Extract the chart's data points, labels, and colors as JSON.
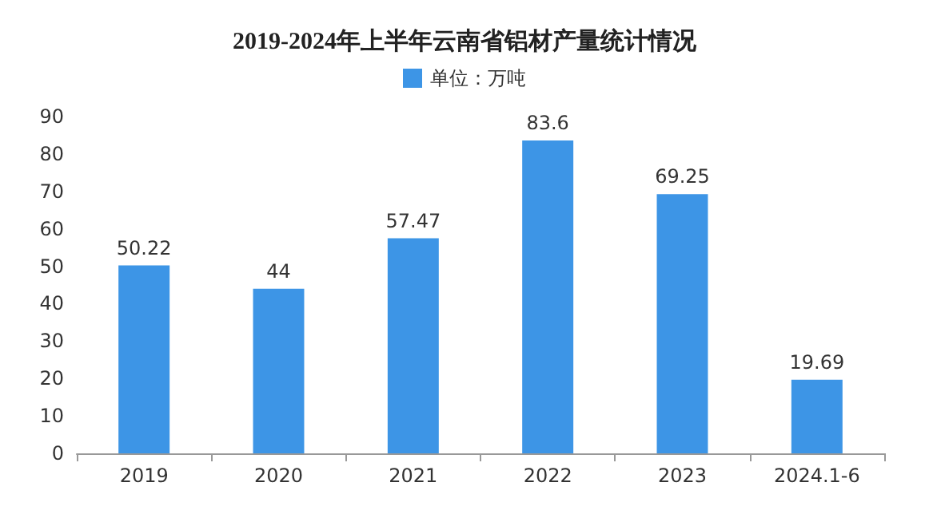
{
  "chart_data": {
    "type": "bar",
    "title": "2019-2024年上半年云南省铝材产量统计情况",
    "categories": [
      "2019",
      "2020",
      "2021",
      "2022",
      "2023",
      "2024.1-6"
    ],
    "series": [
      {
        "name": "单位：万吨",
        "color": "#3d95e6",
        "values": [
          50.22,
          44,
          57.47,
          83.6,
          69.25,
          19.69
        ]
      }
    ],
    "ylim": [
      0,
      90
    ],
    "yticks": [
      0,
      10,
      20,
      30,
      40,
      50,
      60,
      70,
      80,
      90
    ],
    "grid": false,
    "legend": "top",
    "data_labels": true
  }
}
